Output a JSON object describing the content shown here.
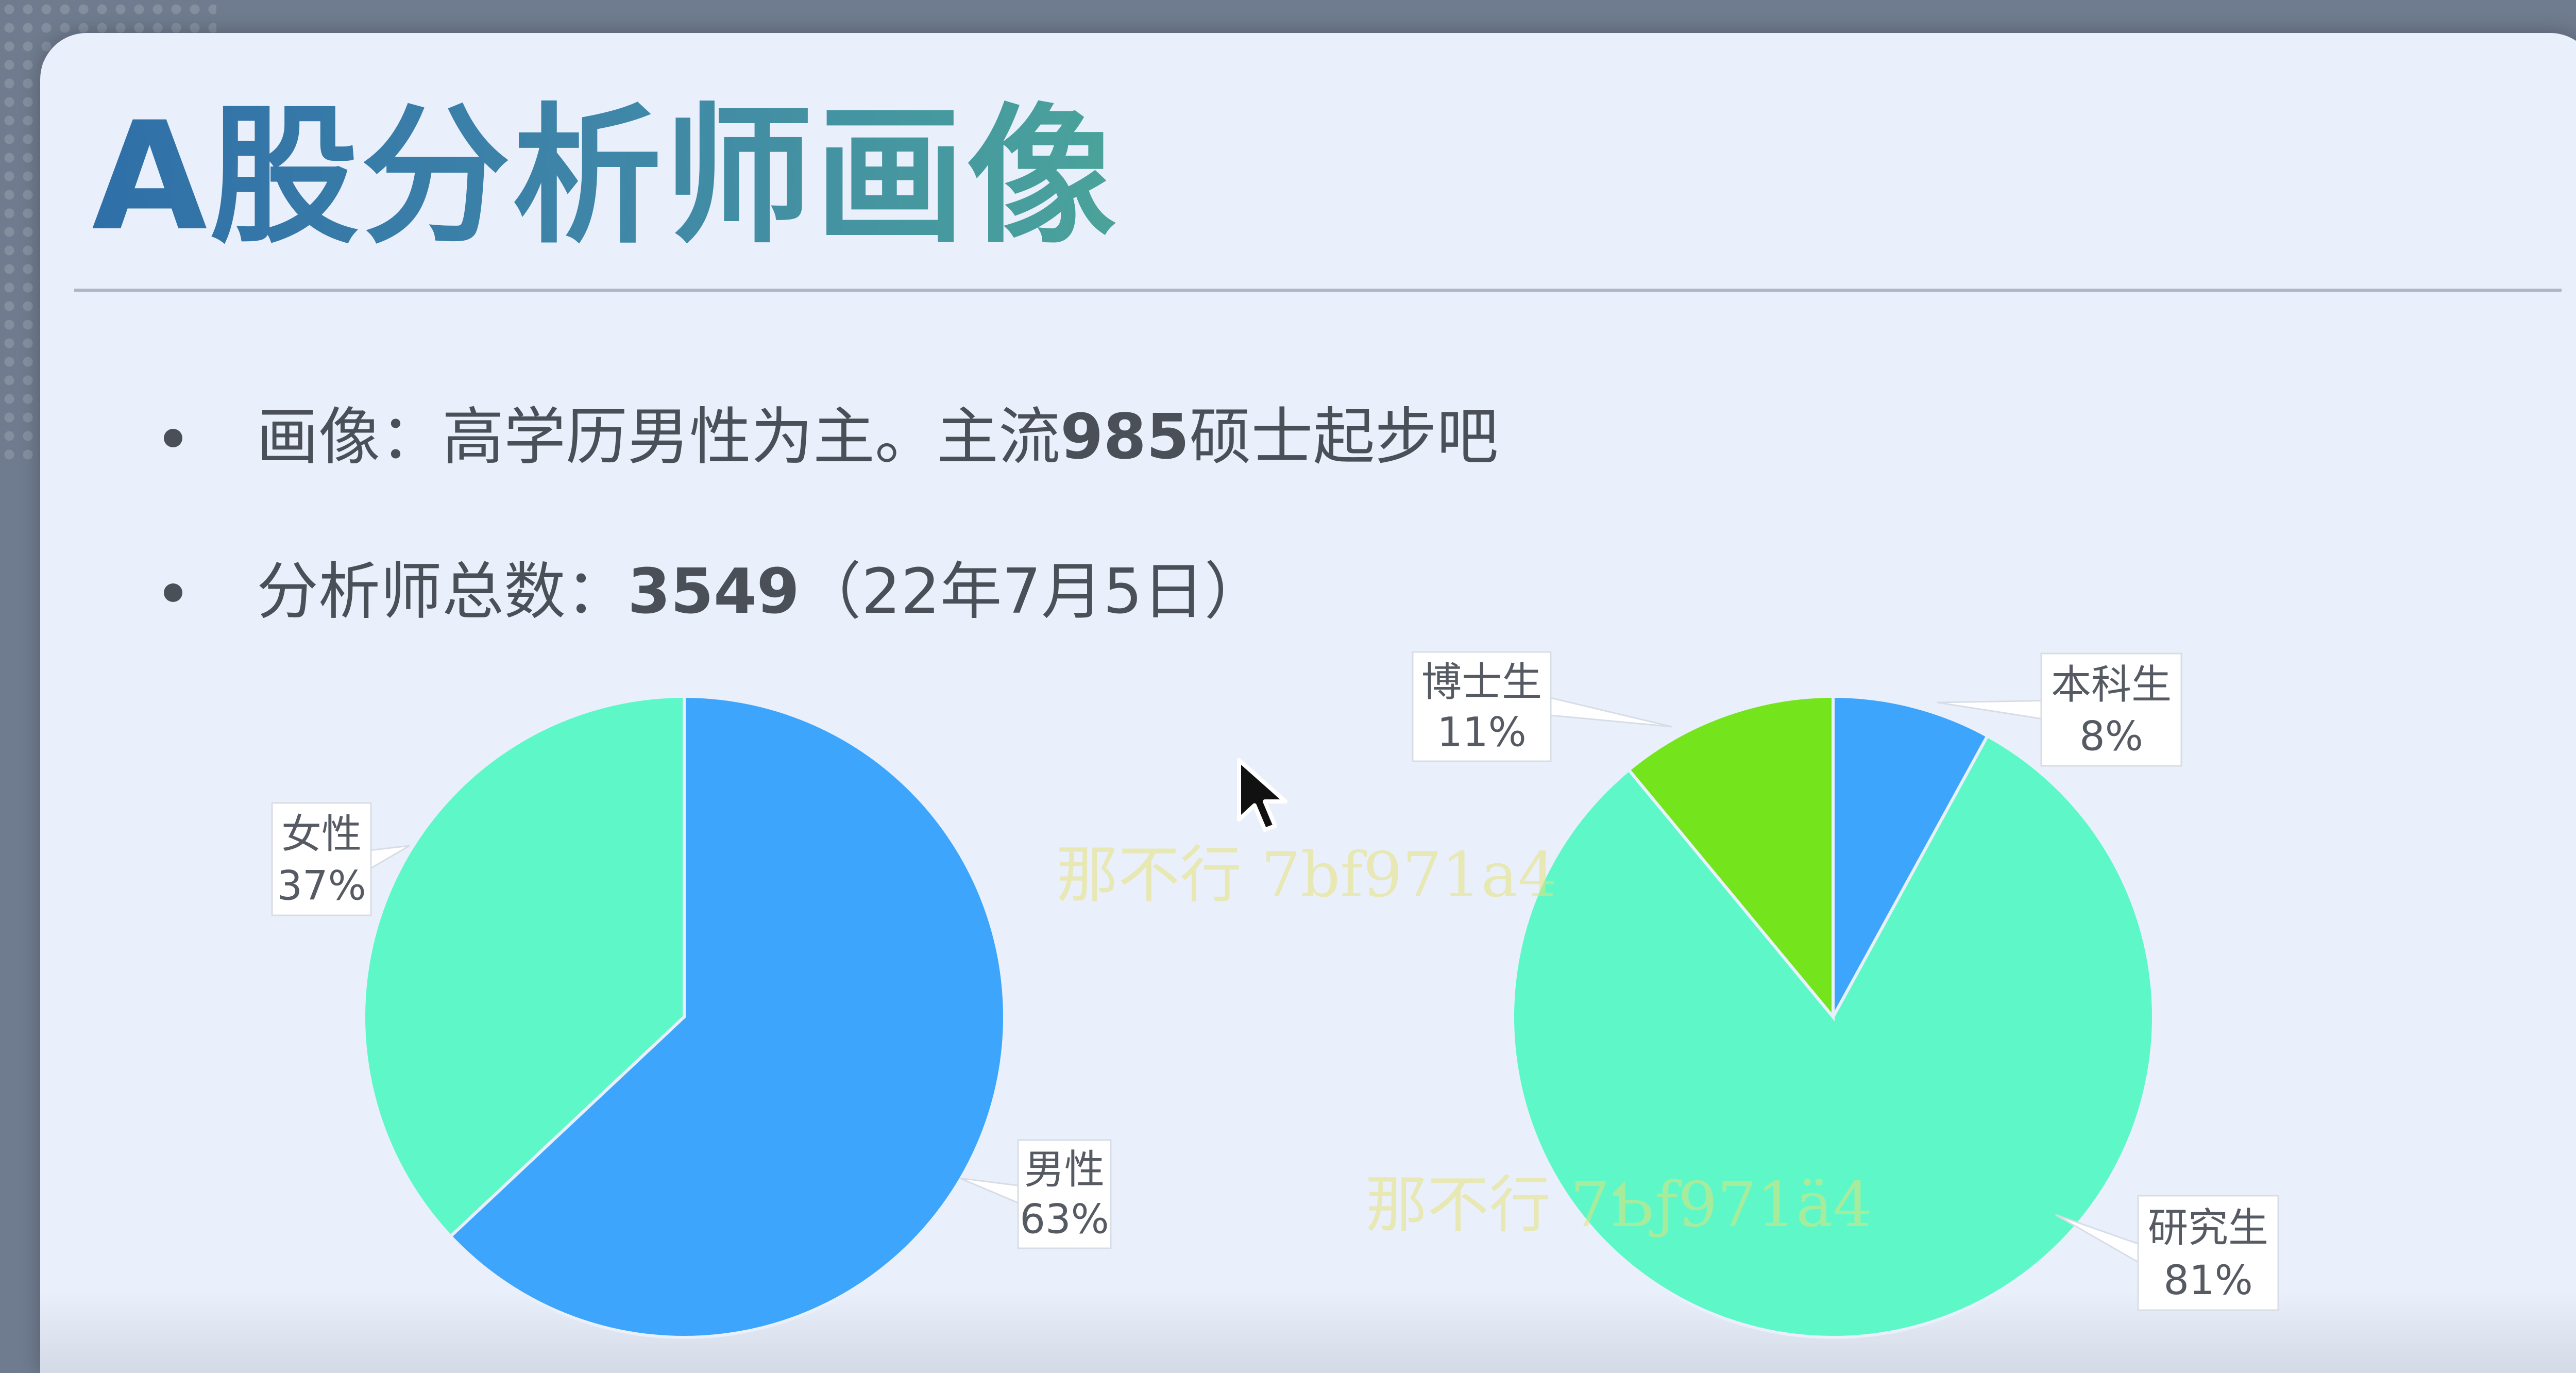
{
  "slide": {
    "title": "A股分析师画像",
    "bullets": [
      {
        "prefix": "画像：高学历男性为主。主流",
        "bold": "985",
        "suffix": "硕士起步吧"
      },
      {
        "prefix": "分析师总数：",
        "bold": "3549",
        "suffix": "（22年7月5日）"
      }
    ]
  },
  "watermark": [
    "那不行 7bf971a4",
    "那不行 7Ƅƒ971ä4"
  ],
  "chart_data": [
    {
      "type": "pie",
      "slices": [
        {
          "label": "男性",
          "value": 63,
          "display": "63%",
          "color": "#3da5fb"
        },
        {
          "label": "女性",
          "value": 37,
          "display": "37%",
          "color": "#5ef8c8"
        }
      ]
    },
    {
      "type": "pie",
      "slices": [
        {
          "label": "本科生",
          "value": 8,
          "display": "8%",
          "color": "#3da5fb"
        },
        {
          "label": "研究生",
          "value": 81,
          "display": "81%",
          "color": "#5ef8c8"
        },
        {
          "label": "博士生",
          "value": 11,
          "display": "11%",
          "color": "#74e41c"
        }
      ]
    }
  ],
  "colors": {
    "accent_blue": "#3da5fb",
    "accent_mint": "#5ef8c8",
    "accent_green": "#74e41c"
  },
  "icons": {
    "cursor": "cursor-arrow-icon"
  }
}
